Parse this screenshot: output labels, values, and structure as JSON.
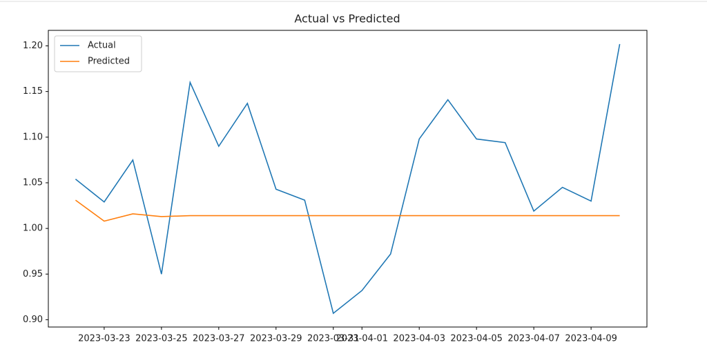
{
  "chart_data": {
    "type": "line",
    "title": "Actual vs Predicted",
    "x": [
      "2023-03-22",
      "2023-03-23",
      "2023-03-24",
      "2023-03-25",
      "2023-03-26",
      "2023-03-27",
      "2023-03-28",
      "2023-03-29",
      "2023-03-30",
      "2023-03-31",
      "2023-04-01",
      "2023-04-02",
      "2023-04-03",
      "2023-04-04",
      "2023-04-05",
      "2023-04-06",
      "2023-04-07",
      "2023-04-08",
      "2023-04-09",
      "2023-04-10"
    ],
    "series": [
      {
        "name": "Actual",
        "color": "#1f77b4",
        "values": [
          1.054,
          1.029,
          1.075,
          0.95,
          1.16,
          1.09,
          1.137,
          1.043,
          1.031,
          0.907,
          0.932,
          0.972,
          1.098,
          1.141,
          1.098,
          1.094,
          1.019,
          1.045,
          1.03,
          1.202
        ]
      },
      {
        "name": "Predicted",
        "color": "#ff7f0e",
        "values": [
          1.031,
          1.008,
          1.016,
          1.013,
          1.014,
          1.014,
          1.014,
          1.014,
          1.014,
          1.014,
          1.014,
          1.014,
          1.014,
          1.014,
          1.014,
          1.014,
          1.014,
          1.014,
          1.014,
          1.014
        ]
      }
    ],
    "xticks": [
      "2023-03-23",
      "2023-03-25",
      "2023-03-27",
      "2023-03-29",
      "2023-03-31",
      "2023-04-01",
      "2023-04-03",
      "2023-04-05",
      "2023-04-07",
      "2023-04-09"
    ],
    "ylim": [
      0.892,
      1.217
    ],
    "yticks": [
      {
        "value": 0.9,
        "label": "0.90"
      },
      0.95,
      {
        "value": 1.0,
        "label": "1.00"
      },
      1.05,
      {
        "value": 1.1,
        "label": "1.10"
      },
      1.15,
      {
        "value": 1.2,
        "label": "1.20"
      }
    ],
    "legend": "upper left",
    "grid": false
  }
}
